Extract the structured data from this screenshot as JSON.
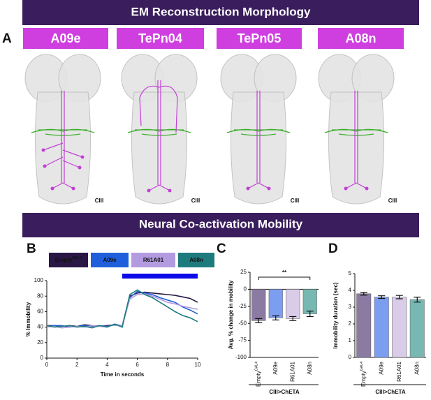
{
  "headers": [
    "EM Reconstruction Morphology",
    "Neural Co-activation Mobility"
  ],
  "panel_labels": [
    "A",
    "B",
    "C",
    "D"
  ],
  "neurons": [
    {
      "name": "A09e",
      "region": "CIII"
    },
    {
      "name": "TePn04",
      "region": "CIII"
    },
    {
      "name": "TePn05",
      "region": "CIII"
    },
    {
      "name": "A08n",
      "region": "CIII"
    }
  ],
  "chart_data": [
    {
      "type": "line",
      "xlabel": "Time in seconds",
      "ylabel": "% Immobility",
      "x": [
        0,
        0.5,
        1,
        1.5,
        2,
        2.5,
        3,
        3.5,
        4,
        4.5,
        5,
        5.5,
        6,
        6.5,
        7,
        7.5,
        8,
        8.5,
        9,
        9.5,
        10
      ],
      "xlim": [
        0,
        10
      ],
      "xticks": [
        0,
        2,
        4,
        6,
        8,
        10
      ],
      "ylim": [
        0,
        100
      ],
      "yticks": [
        0,
        20,
        40,
        60,
        80,
        100
      ],
      "stimulus": [
        5,
        10
      ],
      "stimulus_color": "#0b0bea",
      "series": [
        {
          "name": "Empty",
          "superscript": "GAL4",
          "color": "#2a1745",
          "values": [
            42,
            42,
            41,
            42,
            41,
            43,
            42,
            41,
            42,
            43,
            42,
            80,
            84,
            85,
            84,
            83,
            82,
            81,
            79,
            77,
            72
          ]
        },
        {
          "name": "A09e",
          "color": "#1f5fdc",
          "values": [
            41,
            42,
            42,
            40,
            41,
            42,
            41,
            42,
            41,
            43,
            42,
            78,
            86,
            84,
            82,
            78,
            75,
            72,
            66,
            62,
            57
          ]
        },
        {
          "name": "R61A01",
          "color": "#b39be0",
          "values": [
            40,
            41,
            39,
            40,
            41,
            40,
            42,
            41,
            40,
            44,
            42,
            76,
            82,
            83,
            80,
            76,
            72,
            70,
            67,
            65,
            63
          ]
        },
        {
          "name": "A08n",
          "color": "#1e7b7d",
          "values": [
            42,
            40,
            41,
            42,
            40,
            41,
            39,
            42,
            40,
            44,
            40,
            82,
            88,
            82,
            78,
            72,
            66,
            60,
            55,
            52,
            47
          ]
        }
      ]
    },
    {
      "type": "bar",
      "ylabel": "Avg. % change in mobility",
      "xlabel": "CIII>ChETA",
      "categories": [
        "Empty",
        "A09e",
        "R61A01",
        "A08n"
      ],
      "category_superscripts": [
        "GAL4",
        null,
        null,
        null
      ],
      "values": [
        -46,
        -42,
        -43,
        -36
      ],
      "errors": [
        3,
        3,
        3,
        4
      ],
      "colors": [
        "#8b7ba3",
        "#7c9ef0",
        "#d9cce9",
        "#77b8b3"
      ],
      "ylim": [
        -100,
        25
      ],
      "yticks": [
        25,
        0,
        -25,
        -50,
        -75,
        -100
      ],
      "significance": "**"
    },
    {
      "type": "bar",
      "ylabel": "Immobility duration (sec)",
      "xlabel": "CIII>ChETA",
      "categories": [
        "Empty",
        "A09e",
        "R61A01",
        "A08n"
      ],
      "category_superscripts": [
        "GAL4",
        null,
        null,
        null
      ],
      "values": [
        3.8,
        3.6,
        3.6,
        3.45
      ],
      "errors": [
        0.08,
        0.08,
        0.1,
        0.15
      ],
      "colors": [
        "#8b7ba3",
        "#7c9ef0",
        "#d9cce9",
        "#77b8b3"
      ],
      "ylim": [
        0,
        5
      ],
      "yticks": [
        0,
        1,
        2,
        3,
        4,
        5
      ]
    }
  ]
}
